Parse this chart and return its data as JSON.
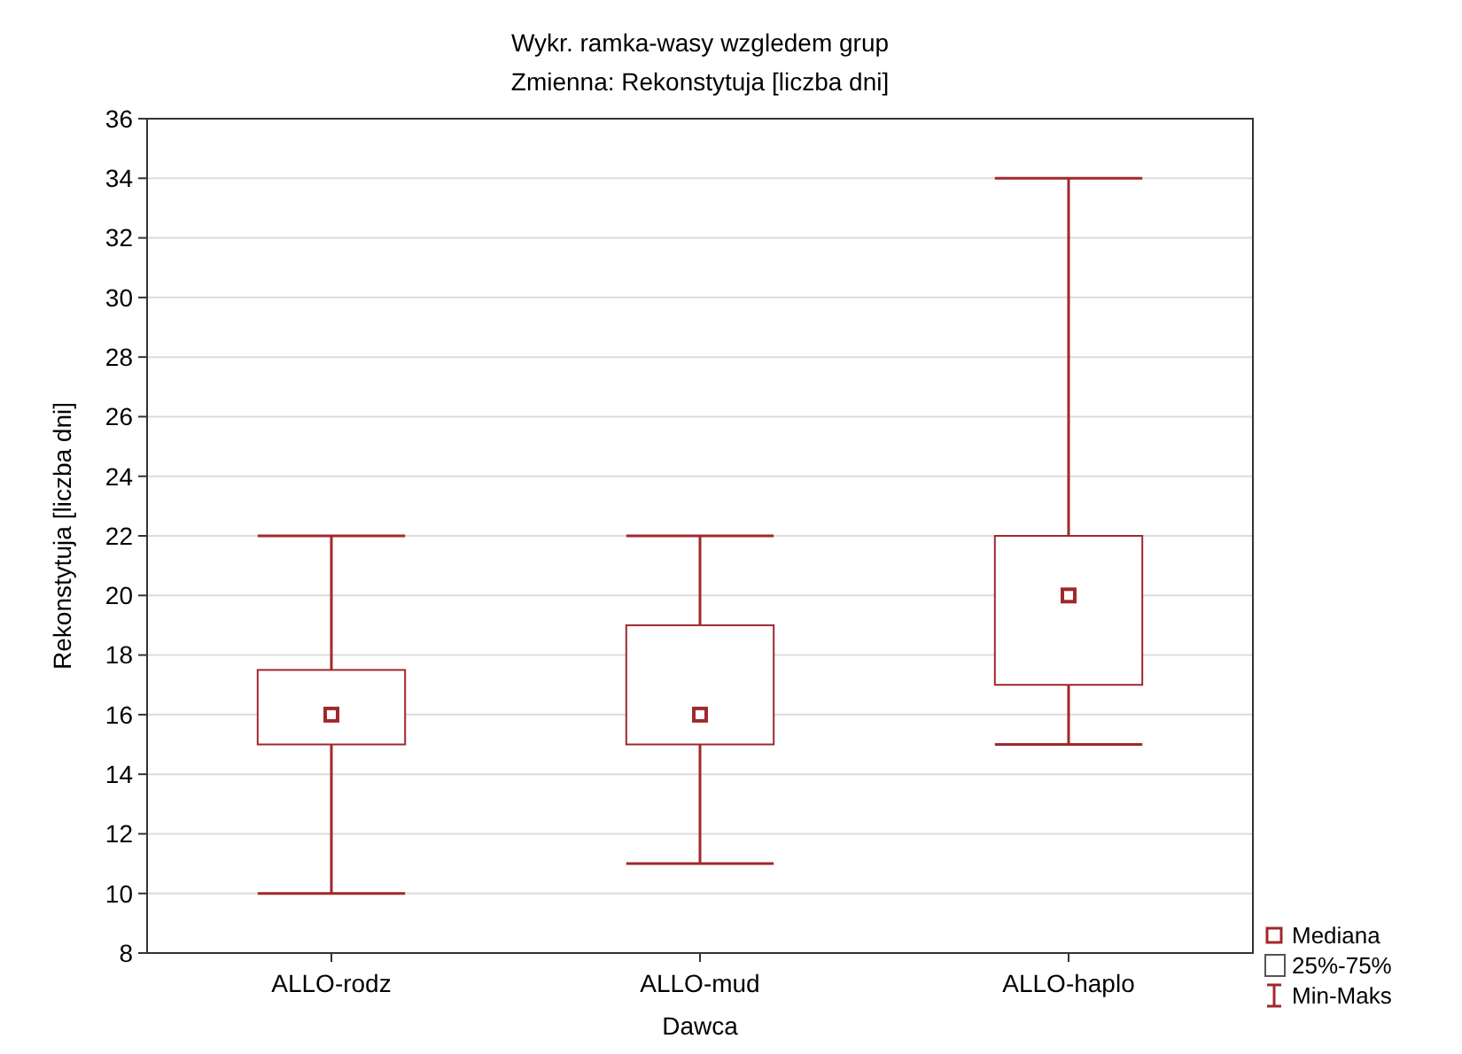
{
  "chart_data": {
    "type": "box",
    "title": "Wykr. ramka-wasy wzgledem grup",
    "subtitle": "Zmienna:  Rekonstytuja [liczba dni]",
    "xlabel": "Dawca",
    "ylabel": "Rekonstytuja [liczba dni]",
    "categories": [
      "ALLO-rodz",
      "ALLO-mud",
      "ALLO-haplo"
    ],
    "boxes": [
      {
        "low": 10,
        "q1": 15,
        "median": 16,
        "q3": 17.5,
        "high": 22
      },
      {
        "low": 11,
        "q1": 15,
        "median": 16,
        "q3": 19,
        "high": 22
      },
      {
        "low": 15,
        "q1": 17,
        "median": 20,
        "q3": 22,
        "high": 34
      }
    ],
    "color": "#a0282d",
    "marker": "square",
    "ylim": [
      8,
      36
    ],
    "yticks": [
      8,
      10,
      12,
      14,
      16,
      18,
      20,
      22,
      24,
      26,
      28,
      30,
      32,
      34,
      36
    ],
    "grid": "y",
    "annotations": [
      "Mediana",
      "25%-75%",
      "Min-Maks"
    ]
  }
}
